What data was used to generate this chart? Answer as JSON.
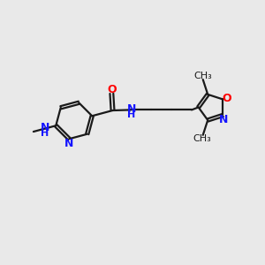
{
  "bg_color": "#e9e9e9",
  "bond_color": "#1a1a1a",
  "N_color": "#1414ff",
  "O_color": "#ff0000",
  "lw": 1.6,
  "dbo": 0.055,
  "figsize": [
    3.0,
    3.0
  ],
  "dpi": 100,
  "xlim": [
    0,
    10
  ],
  "ylim": [
    0,
    10
  ]
}
